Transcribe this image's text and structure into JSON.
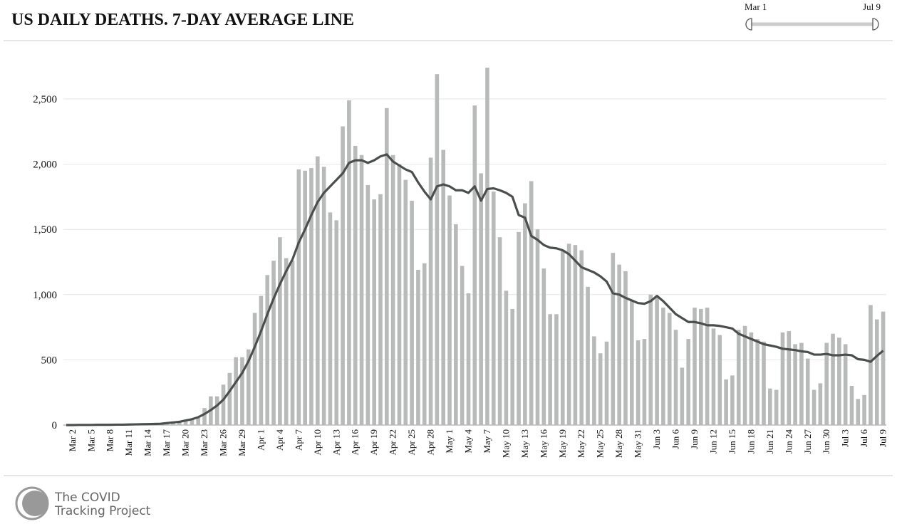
{
  "header": {
    "title": "US DAILY DEATHS. 7-DAY AVERAGE LINE",
    "slider": {
      "start": "Mar 1",
      "end": "Jul 9"
    }
  },
  "footer": {
    "logo": [
      "The COVID",
      "Tracking Project"
    ]
  },
  "chart_data": {
    "type": "bar",
    "categories": [
      null,
      "Mar 2",
      null,
      null,
      "Mar 5",
      null,
      null,
      "Mar 8",
      null,
      null,
      "Mar 11",
      null,
      null,
      "Mar 14",
      null,
      null,
      "Mar 17",
      null,
      null,
      "Mar 20",
      null,
      null,
      "Mar 23",
      null,
      null,
      "Mar 26",
      null,
      null,
      "Mar 29",
      null,
      null,
      "Apr 1",
      null,
      null,
      "Apr 4",
      null,
      null,
      "Apr 7",
      null,
      null,
      "Apr 10",
      null,
      null,
      "Apr 13",
      null,
      null,
      "Apr 16",
      null,
      null,
      "Apr 19",
      null,
      null,
      "Apr 22",
      null,
      null,
      "Apr 25",
      null,
      null,
      "Apr 28",
      null,
      null,
      "May 1",
      null,
      null,
      "May 4",
      null,
      null,
      "May 7",
      null,
      null,
      "May 10",
      null,
      null,
      "May 13",
      null,
      null,
      "May 16",
      null,
      null,
      "May 19",
      null,
      null,
      "May 22",
      null,
      null,
      "May 25",
      null,
      null,
      "May 28",
      null,
      null,
      "May 31",
      null,
      null,
      "Jun 3",
      null,
      null,
      "Jun 6",
      null,
      null,
      "Jun 9",
      null,
      null,
      "Jun 12",
      null,
      null,
      "Jun 15",
      null,
      null,
      "Jun 18",
      null,
      null,
      "Jun 21",
      null,
      null,
      "Jun 24",
      null,
      null,
      "Jun 27",
      null,
      null,
      "Jun 30",
      null,
      null,
      "Jul 3",
      null,
      null,
      "Jul 6",
      null,
      null,
      "Jul 9"
    ],
    "series": [
      {
        "type": "bar",
        "color": "#b7bab8",
        "values": [
          0,
          2,
          1,
          2,
          1,
          2,
          3,
          3,
          4,
          5,
          7,
          8,
          10,
          10,
          10,
          12,
          15,
          18,
          25,
          35,
          45,
          55,
          130,
          220,
          220,
          310,
          400,
          520,
          520,
          580,
          860,
          990,
          1150,
          1260,
          1440,
          1280,
          1260,
          1960,
          1950,
          1970,
          2060,
          1980,
          1630,
          1570,
          2290,
          2490,
          2140,
          2070,
          1840,
          1730,
          1770,
          2430,
          2070,
          2000,
          1880,
          1720,
          1190,
          1240,
          2050,
          2690,
          2110,
          1760,
          1540,
          1220,
          1010,
          2450,
          1930,
          2740,
          1790,
          1440,
          1030,
          890,
          1480,
          1700,
          1870,
          1500,
          1200,
          850,
          850,
          1340,
          1390,
          1380,
          1340,
          1060,
          680,
          550,
          640,
          1320,
          1230,
          1180,
          960,
          650,
          660,
          1000,
          990,
          900,
          860,
          730,
          440,
          660,
          900,
          890,
          900,
          740,
          690,
          350,
          380,
          730,
          760,
          710,
          660,
          640,
          280,
          270,
          710,
          720,
          620,
          630,
          510,
          270,
          320,
          630,
          700,
          670,
          620,
          300,
          200,
          230,
          920,
          810,
          870
        ]
      },
      {
        "type": "line",
        "color": "#4a4e4d",
        "values": [
          0,
          0,
          1,
          1,
          1,
          2,
          2,
          2,
          3,
          3,
          4,
          5,
          6,
          7,
          8,
          10,
          15,
          20,
          25,
          35,
          45,
          60,
          85,
          115,
          150,
          195,
          260,
          330,
          400,
          490,
          600,
          720,
          850,
          970,
          1080,
          1180,
          1270,
          1400,
          1500,
          1610,
          1710,
          1780,
          1830,
          1880,
          1930,
          2010,
          2030,
          2030,
          2010,
          2030,
          2060,
          2075,
          2020,
          1990,
          1960,
          1940,
          1860,
          1790,
          1730,
          1830,
          1845,
          1830,
          1800,
          1800,
          1780,
          1830,
          1720,
          1810,
          1815,
          1800,
          1780,
          1750,
          1610,
          1590,
          1450,
          1420,
          1380,
          1360,
          1355,
          1340,
          1310,
          1260,
          1210,
          1190,
          1170,
          1140,
          1100,
          1010,
          1000,
          975,
          955,
          935,
          930,
          950,
          990,
          950,
          900,
          850,
          820,
          790,
          790,
          780,
          765,
          765,
          760,
          750,
          740,
          700,
          680,
          660,
          640,
          620,
          610,
          600,
          585,
          580,
          575,
          565,
          560,
          540,
          540,
          545,
          535,
          535,
          540,
          535,
          505,
          500,
          485,
          530,
          570
        ]
      }
    ],
    "ylim": [
      0,
      2780
    ],
    "yticks": [
      0,
      500,
      {
        "value": 1000,
        "label": "1,000"
      },
      {
        "value": 1500,
        "label": "1,500"
      },
      {
        "value": 2000,
        "label": "2,000"
      },
      {
        "value": 2500,
        "label": "2,500"
      }
    ],
    "grid": true
  }
}
